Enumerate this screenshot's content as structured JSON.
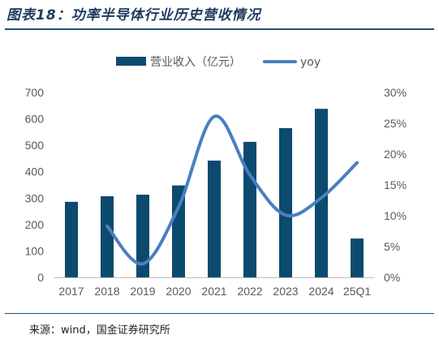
{
  "figure": {
    "title": "图表18：功率半导体行业历史营收情况",
    "source": "来源：wind，国金证券研究所"
  },
  "colors": {
    "bar": "#0c4a6e",
    "line": "#4a7fc1",
    "rule": "#1f4e79",
    "text": "#595959"
  },
  "chart_data": {
    "type": "bar",
    "categories": [
      "2017",
      "2018",
      "2019",
      "2020",
      "2021",
      "2022",
      "2023",
      "2024",
      "25Q1"
    ],
    "series": [
      {
        "name": "营业收入（亿元）",
        "type": "bar",
        "axis": "left",
        "values": [
          286,
          307,
          313,
          348,
          442,
          513,
          565,
          638,
          147
        ]
      },
      {
        "name": "yoy",
        "type": "line",
        "axis": "right",
        "unit": "%",
        "values": [
          null,
          8.3,
          2.2,
          11.4,
          26.1,
          16.6,
          10.1,
          12.9,
          18.6
        ]
      }
    ],
    "y_left": {
      "min": 0,
      "max": 700,
      "step": 100,
      "ticks": [
        "0",
        "100",
        "200",
        "300",
        "400",
        "500",
        "600",
        "700"
      ]
    },
    "y_right": {
      "min": 0,
      "max": 30,
      "step": 5,
      "ticks": [
        "0%",
        "5%",
        "10%",
        "15%",
        "20%",
        "25%",
        "30%"
      ]
    },
    "legend": {
      "placement": "top-center",
      "entries": [
        "营业收入（亿元）",
        "yoy"
      ]
    },
    "grid": false
  }
}
